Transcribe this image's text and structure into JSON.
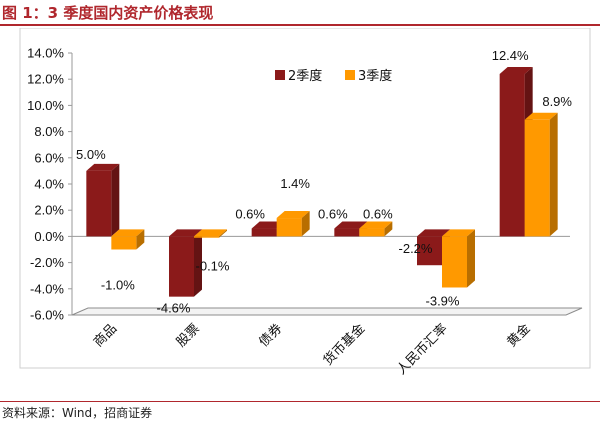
{
  "title": "图 1：3 季度国内资产价格表现",
  "source": "资料来源：Wind，招商证券",
  "colors": {
    "accent": "#b0272d",
    "q2": "#8b1a1a",
    "q3": "#ff9900"
  },
  "chart_data": {
    "type": "bar",
    "style": "3d-clustered",
    "categories": [
      "商品",
      "股票",
      "债券",
      "货币基金",
      "人民币汇率",
      "黄金"
    ],
    "series": [
      {
        "name": "2季度",
        "color": "#8b1a1a",
        "values": [
          5.0,
          -4.6,
          0.6,
          0.6,
          -2.2,
          12.4
        ]
      },
      {
        "name": "3季度",
        "color": "#ff9900",
        "values": [
          -1.0,
          -0.1,
          1.4,
          0.6,
          -3.9,
          8.9
        ]
      }
    ],
    "data_labels": [
      [
        "5.0%",
        "-4.6%",
        "0.6%",
        "0.6%",
        "-2.2%",
        "12.4%"
      ],
      [
        "-1.0%",
        "-0.1%",
        "1.4%",
        "0.6%",
        "-3.9%",
        "8.9%"
      ]
    ],
    "y_ticks": [
      "-6.0%",
      "-4.0%",
      "-2.0%",
      "0.0%",
      "2.0%",
      "4.0%",
      "6.0%",
      "8.0%",
      "10.0%",
      "12.0%",
      "14.0%"
    ],
    "ylim": [
      -6,
      14
    ],
    "ylabel": "",
    "xlabel": "",
    "grid": false,
    "legend_position": "top-center"
  }
}
